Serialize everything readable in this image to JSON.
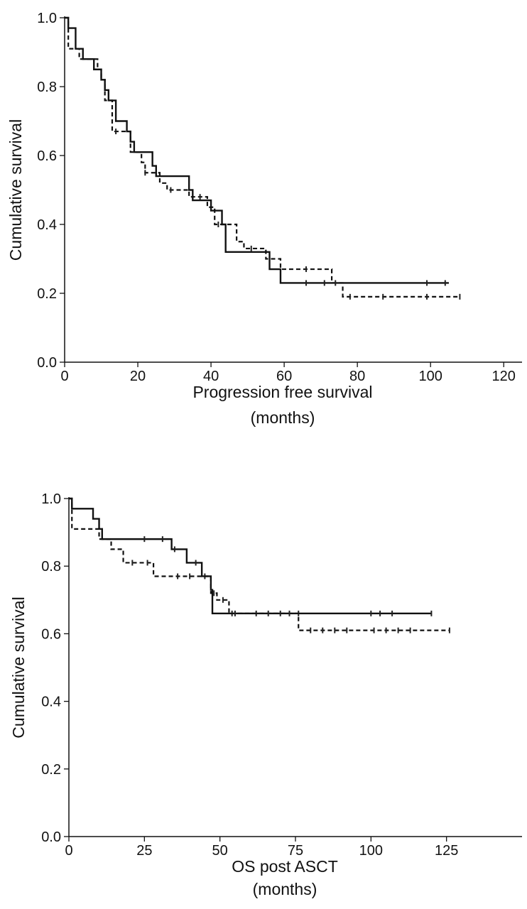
{
  "chart_data": [
    {
      "type": "line",
      "subtype": "kaplan-meier",
      "title": "",
      "xlabel_lines": [
        "Progression free survival",
        "(months)"
      ],
      "ylabel": "Cumulative survival",
      "xlim": [
        0,
        125
      ],
      "ylim": [
        0,
        1
      ],
      "xticks": [
        0,
        20,
        40,
        60,
        80,
        100,
        120
      ],
      "xtick_labels": [
        "0",
        "20",
        "40",
        "60",
        "80",
        "100",
        "120"
      ],
      "yticks": [
        0,
        0.2,
        0.4,
        0.6,
        0.8,
        1.0
      ],
      "ytick_labels": [
        "0.0",
        "0.2",
        "0.4",
        "0.6",
        "0.8",
        "1.0"
      ],
      "series": [
        {
          "name": "solid",
          "style": "solid",
          "steps": [
            [
              0,
              1.0
            ],
            [
              1,
              0.97
            ],
            [
              3,
              0.91
            ],
            [
              5,
              0.88
            ],
            [
              8,
              0.85
            ],
            [
              10,
              0.82
            ],
            [
              11,
              0.79
            ],
            [
              12,
              0.76
            ],
            [
              14,
              0.7
            ],
            [
              17,
              0.67
            ],
            [
              18,
              0.64
            ],
            [
              19,
              0.61
            ],
            [
              24,
              0.57
            ],
            [
              25,
              0.54
            ],
            [
              34,
              0.5
            ],
            [
              35,
              0.47
            ],
            [
              40,
              0.44
            ],
            [
              43,
              0.4
            ],
            [
              44,
              0.32
            ],
            [
              56,
              0.27
            ],
            [
              59,
              0.23
            ],
            [
              105,
              0.23
            ]
          ],
          "censored": [
            [
              66,
              0.23
            ],
            [
              71,
              0.23
            ],
            [
              99,
              0.23
            ],
            [
              104,
              0.23
            ]
          ]
        },
        {
          "name": "dashed",
          "style": "dashed",
          "steps": [
            [
              0,
              1.0
            ],
            [
              1,
              0.91
            ],
            [
              4,
              0.88
            ],
            [
              9,
              0.85
            ],
            [
              10,
              0.82
            ],
            [
              11,
              0.76
            ],
            [
              13,
              0.67
            ],
            [
              18,
              0.61
            ],
            [
              21,
              0.58
            ],
            [
              22,
              0.55
            ],
            [
              26,
              0.52
            ],
            [
              28,
              0.5
            ],
            [
              34,
              0.48
            ],
            [
              39,
              0.45
            ],
            [
              41,
              0.4
            ],
            [
              47,
              0.35
            ],
            [
              49,
              0.33
            ],
            [
              55,
              0.3
            ],
            [
              59,
              0.27
            ],
            [
              73,
              0.23
            ],
            [
              76,
              0.19
            ],
            [
              108,
              0.19
            ]
          ],
          "censored": [
            [
              14,
              0.67
            ],
            [
              22,
              0.55
            ],
            [
              29,
              0.5
            ],
            [
              37,
              0.48
            ],
            [
              42,
              0.4
            ],
            [
              51,
              0.33
            ],
            [
              66,
              0.27
            ],
            [
              74,
              0.23
            ],
            [
              78,
              0.19
            ],
            [
              87,
              0.19
            ],
            [
              99,
              0.19
            ],
            [
              108,
              0.19
            ]
          ]
        }
      ]
    },
    {
      "type": "line",
      "subtype": "kaplan-meier",
      "title": "",
      "xlabel_lines": [
        "OS post ASCT",
        "(months)"
      ],
      "ylabel": "Cumulative survival",
      "xlim": [
        0,
        150
      ],
      "ylim": [
        0,
        1
      ],
      "xticks": [
        0,
        25,
        50,
        75,
        100,
        125
      ],
      "xtick_labels": [
        "0",
        "25",
        "50",
        "75",
        "100",
        "125"
      ],
      "yticks": [
        0,
        0.2,
        0.4,
        0.6,
        0.8,
        1.0
      ],
      "ytick_labels": [
        "0.0",
        "0.2",
        "0.4",
        "0.6",
        "0.8",
        "1.0"
      ],
      "series": [
        {
          "name": "solid",
          "style": "solid",
          "steps": [
            [
              0,
              1.0
            ],
            [
              1,
              0.97
            ],
            [
              8,
              0.94
            ],
            [
              10,
              0.91
            ],
            [
              11,
              0.88
            ],
            [
              34,
              0.85
            ],
            [
              39,
              0.81
            ],
            [
              44,
              0.77
            ],
            [
              47,
              0.73
            ],
            [
              47.5,
              0.66
            ],
            [
              120,
              0.66
            ]
          ],
          "censored": [
            [
              25,
              0.88
            ],
            [
              31,
              0.88
            ],
            [
              35,
              0.85
            ],
            [
              42,
              0.81
            ],
            [
              45,
              0.77
            ],
            [
              54,
              0.66
            ],
            [
              62,
              0.66
            ],
            [
              70,
              0.66
            ],
            [
              76,
              0.66
            ],
            [
              100,
              0.66
            ],
            [
              103,
              0.66
            ],
            [
              107,
              0.66
            ],
            [
              120,
              0.66
            ]
          ]
        },
        {
          "name": "dashed",
          "style": "dashed",
          "steps": [
            [
              0,
              1.0
            ],
            [
              1,
              0.91
            ],
            [
              10,
              0.88
            ],
            [
              14,
              0.85
            ],
            [
              18,
              0.81
            ],
            [
              28,
              0.77
            ],
            [
              47,
              0.72
            ],
            [
              49,
              0.7
            ],
            [
              53,
              0.66
            ],
            [
              76,
              0.61
            ],
            [
              126,
              0.61
            ]
          ],
          "censored": [
            [
              21,
              0.81
            ],
            [
              26,
              0.81
            ],
            [
              36,
              0.77
            ],
            [
              40,
              0.77
            ],
            [
              48,
              0.72
            ],
            [
              51,
              0.7
            ],
            [
              55,
              0.66
            ],
            [
              66,
              0.66
            ],
            [
              73,
              0.66
            ],
            [
              80,
              0.61
            ],
            [
              84,
              0.61
            ],
            [
              88,
              0.61
            ],
            [
              92,
              0.61
            ],
            [
              101,
              0.61
            ],
            [
              105,
              0.61
            ],
            [
              109,
              0.61
            ],
            [
              113,
              0.61
            ],
            [
              126,
              0.61
            ]
          ]
        }
      ]
    }
  ]
}
